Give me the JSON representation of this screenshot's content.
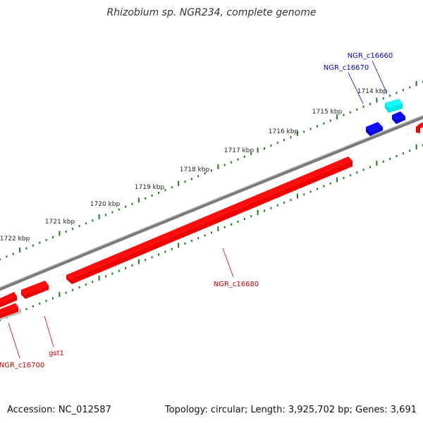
{
  "title": "Rhizobium sp. NGR234, complete genome",
  "footer": {
    "accession": "Accession: NC_012587",
    "summary": "Topology: circular; Length: 3,925,702 bp; Genes: 3,691"
  },
  "ruler": {
    "ticks": [
      {
        "kbp": 1714,
        "label": "1714 kbp"
      },
      {
        "kbp": 1715,
        "label": "1715 kbp"
      },
      {
        "kbp": 1716,
        "label": "1716 kbp"
      },
      {
        "kbp": 1717,
        "label": "1717 kbp"
      },
      {
        "kbp": 1718,
        "label": "1718 kbp"
      },
      {
        "kbp": 1719,
        "label": "1719 kbp"
      },
      {
        "kbp": 1720,
        "label": "1720 kbp"
      },
      {
        "kbp": 1721,
        "label": "1721 kbp"
      },
      {
        "kbp": 1722,
        "label": "1722 kbp"
      }
    ]
  },
  "genes": [
    {
      "name": "NGR_c16660",
      "color": "#00e5e5",
      "strand": "plus",
      "labeled": true
    },
    {
      "name": "NGR_c16670",
      "color": "#0000dd",
      "strand": "plus",
      "labeled": true
    },
    {
      "name": "",
      "color": "#0000dd",
      "strand": "plus",
      "labeled": false
    },
    {
      "name": "",
      "color": "#ee0000",
      "strand": "minus",
      "labeled": false
    },
    {
      "name": "NGR_c16680",
      "color": "#ee0000",
      "strand": "minus",
      "labeled": true
    },
    {
      "name": "",
      "color": "#ee0000",
      "strand": "minus",
      "labeled": false
    },
    {
      "name": "gst1",
      "color": "#ee0000",
      "strand": "minus",
      "labeled": true
    },
    {
      "name": "NGR_c16700",
      "color": "#ee0000",
      "strand": "minus",
      "labeled": true
    },
    {
      "name": "",
      "color": "#bbbbbb",
      "strand": "minus",
      "labeled": false
    }
  ],
  "colors": {
    "backbone": "#7a7a7a",
    "tick": "#1f7a1f",
    "plus_label": "#0000cc",
    "minus_label": "#cc0000"
  }
}
